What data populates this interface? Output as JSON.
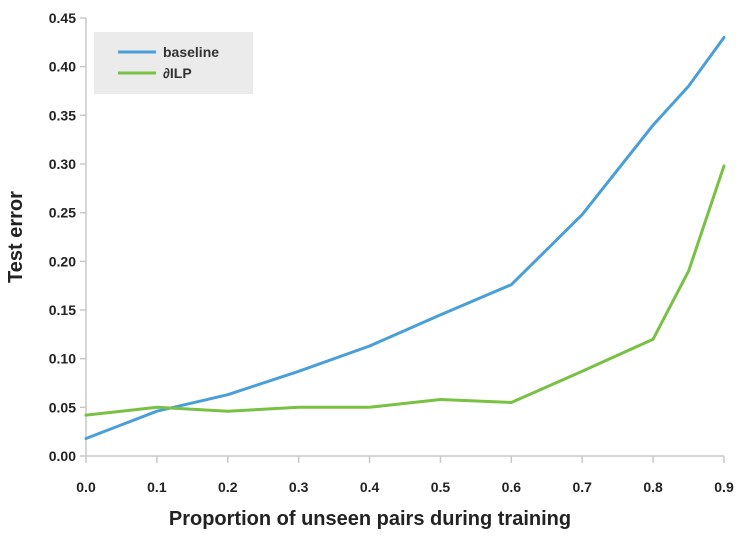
{
  "chart_data": {
    "type": "line",
    "title": "",
    "xlabel": "Proportion of unseen pairs during training",
    "ylabel": "Test error",
    "xlim": [
      0.0,
      0.9
    ],
    "ylim": [
      0.0,
      0.45
    ],
    "x_ticks": [
      "0.0",
      "0.1",
      "0.2",
      "0.3",
      "0.4",
      "0.5",
      "0.6",
      "0.7",
      "0.8",
      "0.9"
    ],
    "y_ticks": [
      "0.00",
      "0.05",
      "0.10",
      "0.15",
      "0.20",
      "0.25",
      "0.30",
      "0.35",
      "0.40",
      "0.45"
    ],
    "grid": false,
    "legend_position": "top-left",
    "series": [
      {
        "name": "baseline",
        "color": "#4a9fd8",
        "x": [
          0.0,
          0.1,
          0.2,
          0.3,
          0.4,
          0.5,
          0.6,
          0.7,
          0.8,
          0.85,
          0.9
        ],
        "y": [
          0.018,
          0.046,
          0.063,
          0.087,
          0.113,
          0.145,
          0.176,
          0.248,
          0.34,
          0.38,
          0.43
        ]
      },
      {
        "name": "∂ILP",
        "color": "#79c142",
        "x": [
          0.0,
          0.1,
          0.2,
          0.3,
          0.4,
          0.5,
          0.6,
          0.7,
          0.8,
          0.85,
          0.9
        ],
        "y": [
          0.042,
          0.05,
          0.046,
          0.05,
          0.05,
          0.058,
          0.055,
          0.087,
          0.12,
          0.19,
          0.298
        ]
      }
    ]
  }
}
